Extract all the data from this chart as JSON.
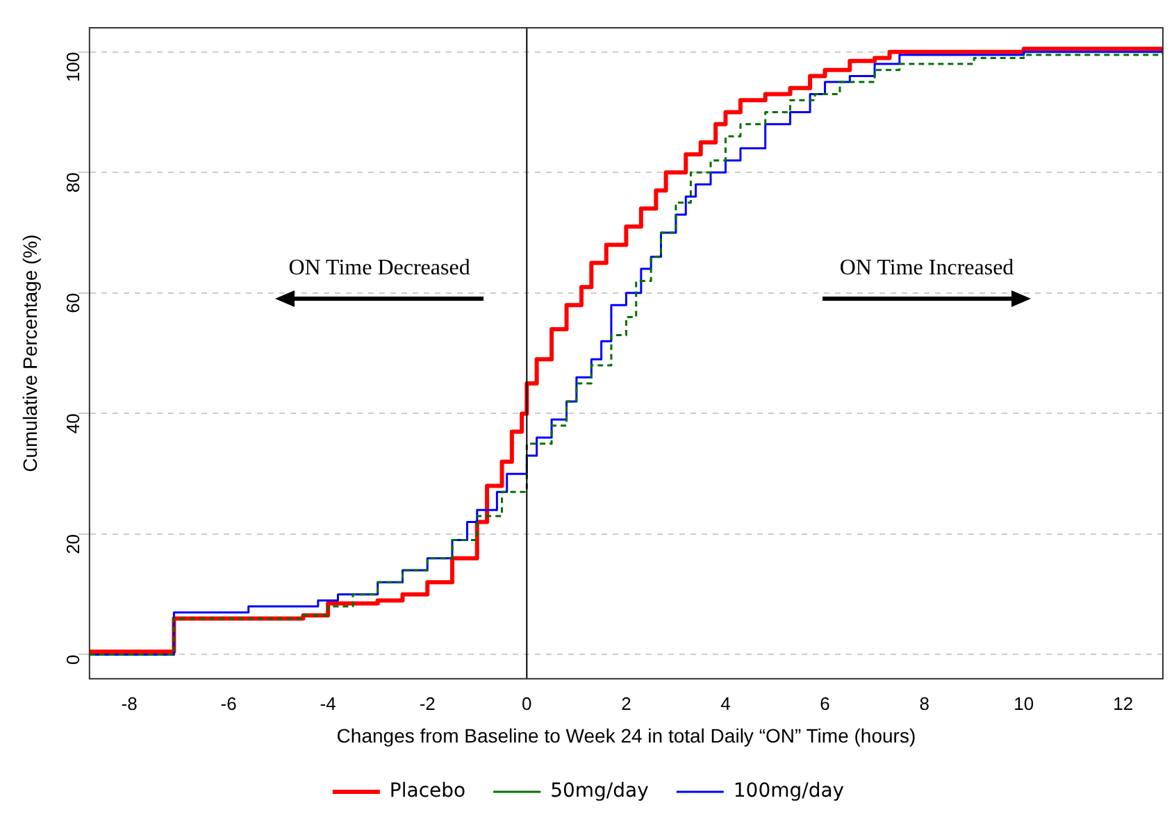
{
  "chart_data": {
    "type": "step",
    "xlabel": "Changes from Baseline to Week 24 in total Daily “ON” Time (hours)",
    "ylabel": "Cumulative Percentage (%)",
    "xlim": [
      -8.8,
      12.8
    ],
    "xticks": [
      -8,
      -6,
      -4,
      -2,
      0,
      2,
      4,
      6,
      8,
      10,
      12
    ],
    "ylim": [
      -4,
      104
    ],
    "yticks": [
      0,
      20,
      40,
      60,
      80,
      100
    ],
    "grid": "y",
    "legend": "bottom",
    "marker": "none",
    "ref_lines": [
      {
        "axis": "x",
        "value": 0,
        "color": "#000000"
      }
    ],
    "annotations": [
      "ON Time Decreased",
      "ON Time Increased"
    ],
    "series": [
      {
        "name": "Placebo",
        "color": "#ff0000",
        "line_style": "solid",
        "x": [
          -8.8,
          -7.1,
          -4.5,
          -4,
          -3,
          -2.5,
          -2,
          -1.5,
          -1,
          -0.8,
          -0.5,
          -0.3,
          -0.1,
          0,
          0.2,
          0.5,
          0.8,
          1.1,
          1.3,
          1.6,
          2,
          2.3,
          2.6,
          2.8,
          3.2,
          3.5,
          3.8,
          4,
          4.3,
          4.8,
          5.3,
          5.7,
          6,
          6.5,
          7,
          7.3,
          10,
          12.8
        ],
        "values": [
          0.5,
          6,
          6.5,
          8.5,
          9,
          10,
          12,
          16,
          22,
          28,
          32,
          37,
          40,
          45,
          49,
          54,
          58,
          61,
          65,
          68,
          71,
          74,
          77,
          80,
          83,
          85,
          88,
          90,
          92,
          93,
          94,
          96,
          97,
          98.5,
          99,
          100,
          100.5,
          100.5
        ]
      },
      {
        "name": "50mg/day",
        "color": "#007000",
        "line_style": "dashed",
        "x": [
          -8.8,
          -7.1,
          -4.5,
          -4,
          -3.5,
          -3,
          -2.5,
          -2,
          -1.5,
          -1,
          -0.5,
          0,
          0.5,
          0.8,
          1,
          1.3,
          1.7,
          2,
          2.2,
          2.5,
          2.7,
          3,
          3.3,
          3.7,
          4,
          4.3,
          4.8,
          5.3,
          5.8,
          6.3,
          7,
          7.5,
          9,
          10,
          12.8
        ],
        "values": [
          0,
          6,
          6.5,
          8,
          10,
          12,
          14,
          16,
          19,
          23,
          27,
          35,
          38,
          42,
          45,
          48,
          53,
          56,
          62,
          66,
          70,
          75,
          80,
          82,
          86,
          88,
          90,
          92,
          93,
          95,
          97,
          98,
          99,
          99.5,
          100
        ]
      },
      {
        "name": "100mg/day",
        "color": "#0000ff",
        "line_style": "solid",
        "x": [
          -8.8,
          -7.1,
          -5.6,
          -4.2,
          -3.8,
          -3,
          -2.5,
          -2,
          -1.5,
          -1.2,
          -1,
          -0.6,
          -0.4,
          0,
          0.2,
          0.5,
          0.8,
          1,
          1.3,
          1.5,
          1.7,
          2,
          2.3,
          2.5,
          2.7,
          3,
          3.2,
          3.4,
          3.7,
          4,
          4.3,
          4.8,
          5.3,
          5.7,
          6,
          6.5,
          7,
          7.5,
          10,
          12.8
        ],
        "values": [
          0,
          7,
          8,
          9,
          10,
          12,
          14,
          16,
          19,
          22,
          24,
          27,
          30,
          33,
          36,
          39,
          42,
          46,
          49,
          52,
          58,
          60,
          64,
          66,
          70,
          73,
          76,
          78,
          80,
          82,
          84,
          88,
          90,
          93,
          95,
          96,
          98,
          99.5,
          100,
          100.5
        ]
      }
    ]
  }
}
